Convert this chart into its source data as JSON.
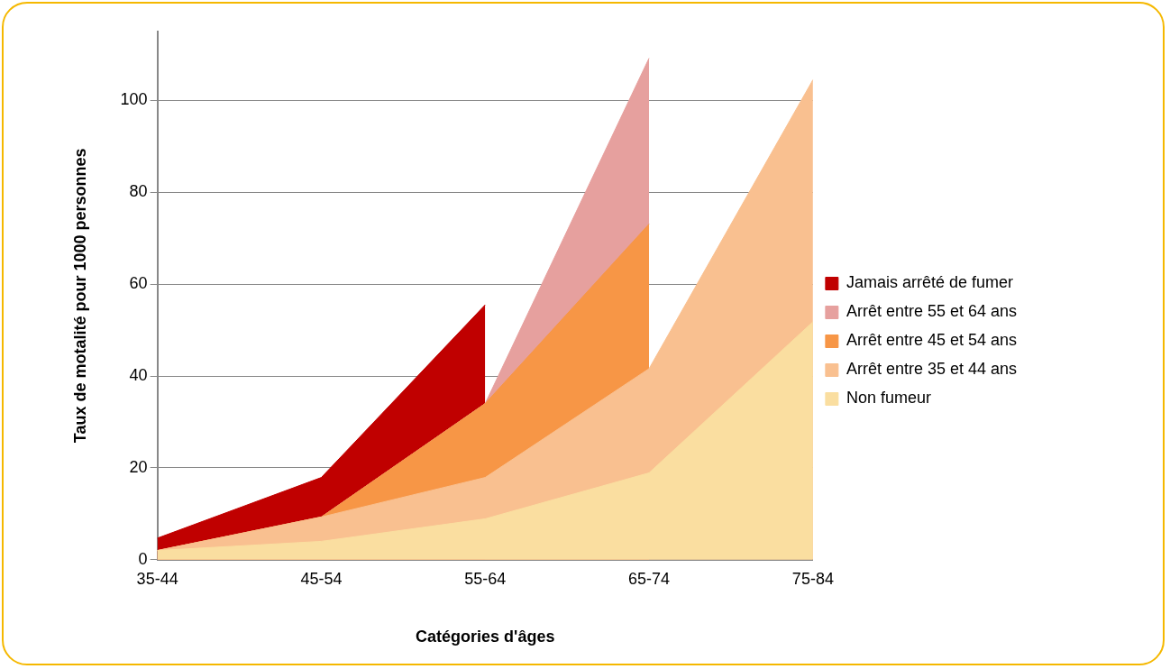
{
  "chart_data": {
    "type": "area",
    "xlabel": "Catégories d'âges",
    "ylabel": "Taux de motalité pour 1000 personnes",
    "categories": [
      "35-44",
      "45-54",
      "55-64",
      "65-74",
      "75-84"
    ],
    "series": [
      {
        "name": "Jamais arrêté de fumer",
        "color": "#c00000",
        "values": [
          4.7,
          17.9,
          55.5,
          null,
          null
        ]
      },
      {
        "name": "Arrêt entre 55 et 64 ans",
        "color": "#e6a09e",
        "values": [
          2,
          9.3,
          34,
          109.2,
          null
        ]
      },
      {
        "name": "Arrêt entre 45 et 54 ans",
        "color": "#f79646",
        "values": [
          2,
          9.3,
          34,
          73.1,
          null
        ]
      },
      {
        "name": "Arrêt entre 35 et 44 ans",
        "color": "#f9c090",
        "values": [
          2,
          9.3,
          17.9,
          41.6,
          104.5
        ]
      },
      {
        "name": "Non fumeur",
        "color": "#fadea0",
        "values": [
          2,
          4,
          8.9,
          18.9,
          51.8
        ]
      }
    ],
    "ylim": [
      0,
      115
    ],
    "yticks": [
      0,
      20,
      40,
      60,
      80,
      100
    ],
    "grid": "y",
    "legend": "right"
  }
}
